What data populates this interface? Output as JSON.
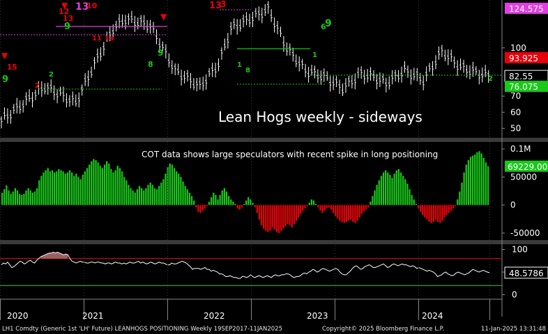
{
  "chart_data": {
    "type": "bar",
    "title": "Lean Hogs weekly - sideways",
    "subtitle": "COT data shows large speculators with recent spike in long positioning",
    "x_ticks": [
      "2020",
      "2021",
      "2022",
      "2023",
      "2024"
    ],
    "price_panel": {
      "type": "bar",
      "y_ticks": [
        50,
        60,
        70,
        100
      ],
      "ylim": [
        45,
        128
      ],
      "labels": [
        {
          "text": "124.575",
          "value": 124.575,
          "color": "#e040e0"
        },
        {
          "text": "93.925",
          "value": 93.925,
          "color": "#e8000b"
        },
        {
          "text": "82.55",
          "value": 82.55,
          "color": "#000000"
        },
        {
          "text": "76.075",
          "value": 76.075,
          "color": "#19c819"
        }
      ],
      "markers": [
        "9",
        "1",
        "5",
        "2",
        "3",
        "12",
        "13",
        "10",
        "11",
        "8"
      ]
    },
    "cot_panel": {
      "type": "bar",
      "y_ticks": [
        "0.1M",
        "50000",
        "0",
        "-50000"
      ],
      "ylim": [
        -60000,
        110000
      ],
      "last_label": "69229.00",
      "series": [
        {
          "name": "",
          "values": [
            22000,
            28000,
            35000,
            26000,
            20000,
            24000,
            30000,
            26000,
            20000,
            18000,
            20000,
            26000,
            30000,
            26000,
            22000,
            24000,
            30000,
            44000,
            52000,
            58000,
            62000,
            66000,
            60000,
            62000,
            58000,
            60000,
            64000,
            62000,
            60000,
            56000,
            58000,
            62000,
            58000,
            52000,
            56000,
            50000,
            46000,
            54000,
            60000,
            66000,
            72000,
            78000,
            82000,
            80000,
            76000,
            70000,
            66000,
            72000,
            78000,
            74000,
            64000,
            58000,
            62000,
            70000,
            66000,
            60000,
            50000,
            44000,
            36000,
            30000,
            26000,
            22000,
            28000,
            34000,
            30000,
            26000,
            30000,
            36000,
            40000,
            36000,
            30000,
            28000,
            34000,
            40000,
            46000,
            56000,
            68000,
            74000,
            72000,
            66000,
            60000,
            56000,
            50000,
            42000,
            34000,
            28000,
            22000,
            16000,
            8000,
            -4000,
            -12000,
            -14000,
            -10000,
            -6000,
            -2000,
            6000,
            14000,
            22000,
            18000,
            10000,
            18000,
            26000,
            30000,
            24000,
            16000,
            10000,
            6000,
            2000,
            -6000,
            -8000,
            -4000,
            2000,
            8000,
            14000,
            10000,
            4000,
            -4000,
            -14000,
            -26000,
            -36000,
            -42000,
            -46000,
            -48000,
            -46000,
            -40000,
            -44000,
            -48000,
            -50000,
            -46000,
            -42000,
            -38000,
            -34000,
            -36000,
            -40000,
            -34000,
            -28000,
            -22000,
            -16000,
            -10000,
            -6000,
            -2000,
            4000,
            10000,
            8000,
            2000,
            -4000,
            -10000,
            -14000,
            -10000,
            -6000,
            -4000,
            -8000,
            -14000,
            -20000,
            -24000,
            -28000,
            -30000,
            -32000,
            -30000,
            -28000,
            -26000,
            -30000,
            -32000,
            -28000,
            -22000,
            -16000,
            -12000,
            -8000,
            -4000,
            6000,
            16000,
            26000,
            36000,
            44000,
            52000,
            58000,
            62000,
            58000,
            54000,
            48000,
            56000,
            62000,
            64000,
            58000,
            52000,
            46000,
            38000,
            28000,
            18000,
            10000,
            2000,
            -6000,
            -12000,
            -18000,
            -22000,
            -26000,
            -30000,
            -32000,
            -30000,
            -26000,
            -30000,
            -32000,
            -28000,
            -22000,
            -18000,
            -14000,
            -10000,
            -6000,
            -2000,
            10000,
            24000,
            40000,
            58000,
            72000,
            80000,
            86000,
            88000,
            90000,
            94000,
            96000,
            92000,
            84000,
            76000,
            69229
          ]
        }
      ]
    },
    "index_panel": {
      "type": "line",
      "y_ticks": [
        0,
        50,
        100
      ],
      "ylim": [
        -10,
        110
      ],
      "upper_line": 80,
      "lower_line": 20,
      "last_label": "48.5786",
      "series": [
        {
          "name": "",
          "values": [
            66,
            70,
            68,
            72,
            66,
            60,
            62,
            66,
            70,
            74,
            72,
            68,
            70,
            74,
            76,
            72,
            70,
            76,
            80,
            84,
            86,
            88,
            90,
            92,
            92,
            94,
            92,
            94,
            92,
            90,
            88,
            90,
            88,
            80,
            74,
            72,
            70,
            72,
            74,
            72,
            72,
            70,
            70,
            72,
            72,
            70,
            72,
            72,
            70,
            70,
            68,
            70,
            70,
            68,
            70,
            72,
            70,
            70,
            68,
            70,
            68,
            70,
            72,
            70,
            70,
            72,
            74,
            70,
            72,
            70,
            68,
            70,
            72,
            70,
            68,
            70,
            72,
            70,
            70,
            68,
            66,
            66,
            70,
            68,
            68,
            70,
            72,
            74,
            72,
            70,
            66,
            62,
            56,
            58,
            58,
            58,
            56,
            58,
            60,
            56,
            56,
            52,
            54,
            52,
            50,
            46,
            46,
            44,
            40,
            40,
            42,
            40,
            38,
            38,
            36,
            36,
            40,
            40,
            38,
            40,
            44,
            40,
            38,
            40,
            42,
            40,
            38,
            40,
            42,
            40,
            38,
            42,
            44,
            42,
            42,
            44,
            44,
            46,
            46,
            44,
            40,
            38,
            40,
            40,
            42,
            46,
            48,
            46,
            50,
            52,
            56,
            54,
            50,
            52,
            56,
            58,
            56,
            54,
            52,
            54,
            56,
            58,
            56,
            50,
            46,
            44,
            44,
            48,
            52,
            58,
            62,
            64,
            60,
            56,
            58,
            62,
            64,
            66,
            64,
            60,
            60,
            62,
            64,
            66,
            68,
            64,
            60,
            62,
            66,
            68,
            66,
            64,
            66,
            68,
            66,
            66,
            64,
            62,
            64,
            62,
            58,
            60,
            58,
            56,
            54,
            52,
            54,
            52,
            50,
            46,
            40,
            42,
            44,
            48,
            50,
            46,
            44,
            42,
            44,
            48,
            50,
            48,
            46,
            44,
            46,
            48,
            52,
            56,
            54,
            52,
            50,
            52,
            54,
            52,
            50,
            48.58
          ]
        }
      ]
    }
  },
  "footer": {
    "left": "LH1 Comdty (Generic 1st 'LH' Future) LEANHOGS POSITIONING  Weekly 19SEP2017-11JAN2025",
    "center": "Copyright© 2025 Bloomberg Finance L.P.",
    "right": "11-Jan-2025 13:31:48"
  },
  "colors": {
    "price_bar": "#ffffff",
    "cot_positive": "#19c819",
    "cot_negative": "#e8000b",
    "index_line": "#ffffff",
    "overbought_line": "#e8000b",
    "oversold_line": "#19c819",
    "magenta_level": "#e040e0",
    "panel_divider": "#606060"
  }
}
